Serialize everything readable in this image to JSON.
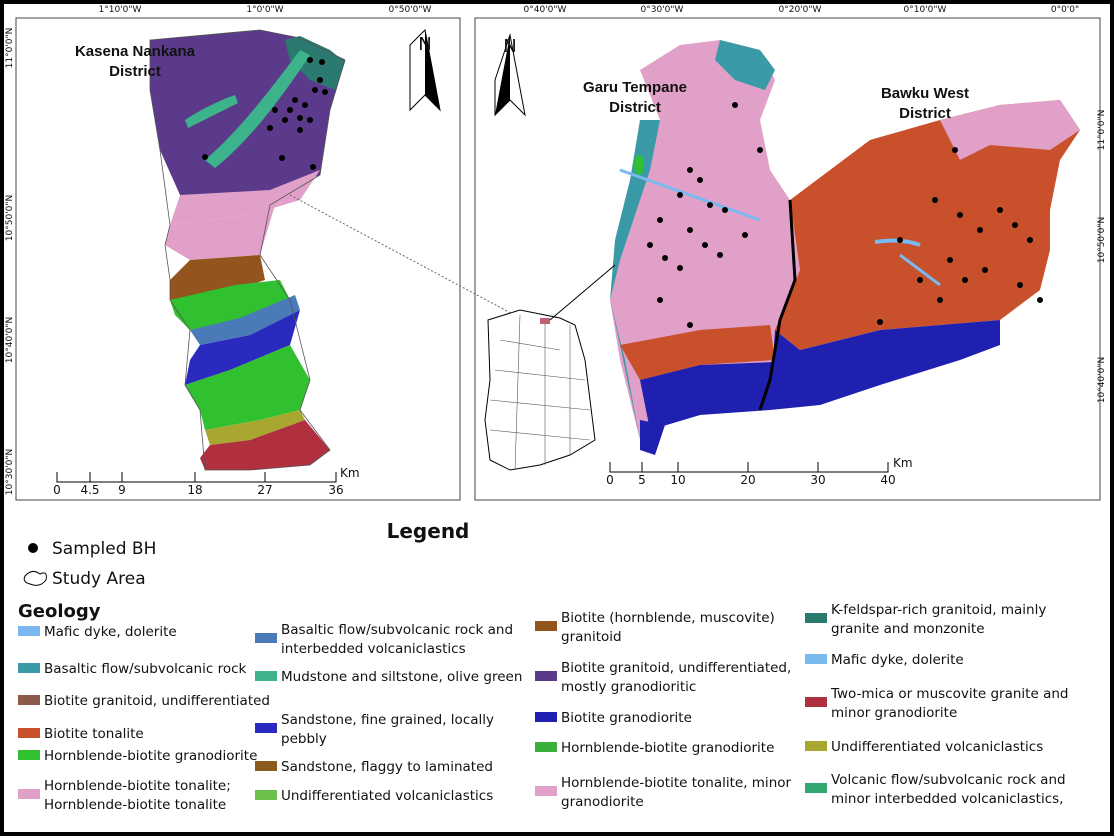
{
  "left_map": {
    "district": [
      "Kasena Nankana",
      "District"
    ],
    "north": "N",
    "top_coords": [
      "1°10'0\"W",
      "1°0'0\"W",
      "0°50'0\"W"
    ],
    "side_coords": [
      "11°0'0\"N",
      "10°50'0\"N",
      "10°40'0\"N",
      "10°30'0\"N"
    ],
    "scale": {
      "unit": "Km",
      "labels": [
        "0",
        "4.5",
        "9",
        "18",
        "27",
        "36"
      ]
    }
  },
  "right_map": {
    "districts": [
      [
        "Garu Tempane",
        "District"
      ],
      [
        "Bawku West",
        "District"
      ]
    ],
    "north": "N",
    "top_coords": [
      "0°40'0\"W",
      "0°30'0\"W",
      "0°20'0\"W",
      "0°10'0\"W",
      "0°0'0\""
    ],
    "side_coords": [
      "11°0'0\"N",
      "10°50'0\"N",
      "10°40'0\"N"
    ],
    "scale": {
      "unit": "Km",
      "labels": [
        "0",
        "5",
        "10",
        "20",
        "30",
        "40"
      ]
    }
  },
  "legend": {
    "title": "Legend",
    "sampled_bh": "Sampled BH",
    "study_area": "Study Area",
    "geology_title": "Geology",
    "columns": [
      [
        {
          "lines": [
            "Mafic dyke, dolerite"
          ],
          "color": "#7ab8f0"
        },
        {
          "lines": [
            "Basaltic flow/subvolcanic rock"
          ],
          "color": "#3a9aa8"
        },
        {
          "lines": [
            "Biotite granitoid, undifferentiated"
          ],
          "color": "#8b5a4a"
        },
        {
          "lines": [
            "Biotite tonalite"
          ],
          "color": "#c8502a"
        },
        {
          "lines": [
            "Hornblende-biotite granodiorite"
          ],
          "color": "#30c030"
        },
        {
          "lines": [
            "Hornblende-biotite tonalite;",
            "Hornblende-biotite tonalite"
          ],
          "color": "#e0a0c8"
        }
      ],
      [
        {
          "lines": [
            "Basaltic flow/subvolcanic rock and",
            "interbedded volcaniclastics"
          ],
          "color": "#4a7ab8"
        },
        {
          "lines": [
            "Mudstone and siltstone, olive green"
          ],
          "color": "#3cb38a"
        },
        {
          "lines": [
            "Sandstone, fine grained, locally",
            "pebbly"
          ],
          "color": "#2a2abf"
        },
        {
          "lines": [
            "Sandstone, flaggy to laminated"
          ],
          "color": "#8b5a1e"
        },
        {
          "lines": [
            "Undifferentiated volcaniclastics"
          ],
          "color": "#6cc04a"
        }
      ],
      [
        {
          "lines": [
            "Biotite (hornblende, muscovite)",
            "granitoid"
          ],
          "color": "#94541e"
        },
        {
          "lines": [
            "Biotite granitoid, undifferentiated,",
            "mostly granodioritic"
          ],
          "color": "#5b3a8c"
        },
        {
          "lines": [
            "Biotite granodiorite"
          ],
          "color": "#2020b0"
        },
        {
          "lines": [
            "Hornblende-biotite granodiorite"
          ],
          "color": "#3ab03a"
        },
        {
          "lines": [
            "Hornblende-biotite tonalite, minor",
            "granodiorite"
          ],
          "color": "#e0a0c8"
        }
      ],
      [
        {
          "lines": [
            "K-feldspar-rich granitoid, mainly",
            "granite and monzonite"
          ],
          "color": "#2a7a70"
        },
        {
          "lines": [
            "Mafic dyke, dolerite"
          ],
          "color": "#7ab8f0"
        },
        {
          "lines": [
            "Two-mica or muscovite granite and",
            "minor granodiorite"
          ],
          "color": "#b03040"
        },
        {
          "lines": [
            "Undifferentiated volcaniclastics"
          ],
          "color": "#a8a830"
        },
        {
          "lines": [
            "Volcanic flow/subvolcanic rock and",
            "minor interbedded volcaniclastics,"
          ],
          "color": "#30a870"
        }
      ]
    ]
  }
}
